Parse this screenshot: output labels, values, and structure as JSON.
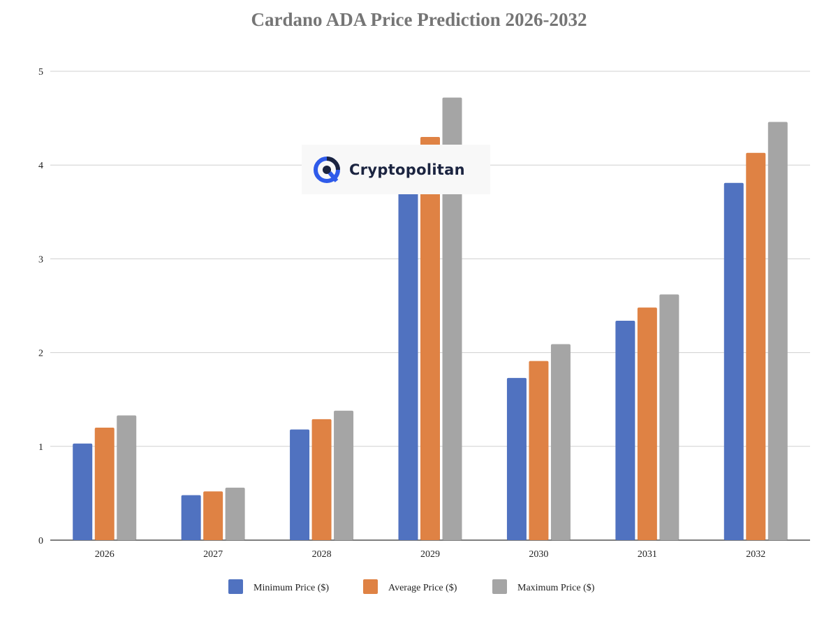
{
  "chart_data": {
    "type": "bar",
    "title": "Cardano ADA Price Prediction 2026-2032",
    "xlabel": "",
    "ylabel": "",
    "ylim": [
      0,
      5
    ],
    "yticks": [
      "0",
      "1",
      "2",
      "3",
      "4",
      "5"
    ],
    "grid": true,
    "legend_position": "bottom",
    "categories": [
      "2026",
      "2027",
      "2028",
      "2029",
      "2030",
      "2031",
      "2032"
    ],
    "series": [
      {
        "name": "Minimum Price ($)",
        "color": "#5072C0",
        "values": [
          1.03,
          0.48,
          1.18,
          3.95,
          1.73,
          2.34,
          3.81
        ]
      },
      {
        "name": "Average Price ($)",
        "color": "#DF8244",
        "values": [
          1.2,
          0.52,
          1.29,
          4.3,
          1.91,
          2.48,
          4.13
        ]
      },
      {
        "name": "Maximum Price ($)",
        "color": "#A5A5A5",
        "values": [
          1.33,
          0.56,
          1.38,
          4.72,
          2.09,
          2.62,
          4.46
        ]
      }
    ]
  },
  "watermark": {
    "text": "Cryptopolitan"
  }
}
